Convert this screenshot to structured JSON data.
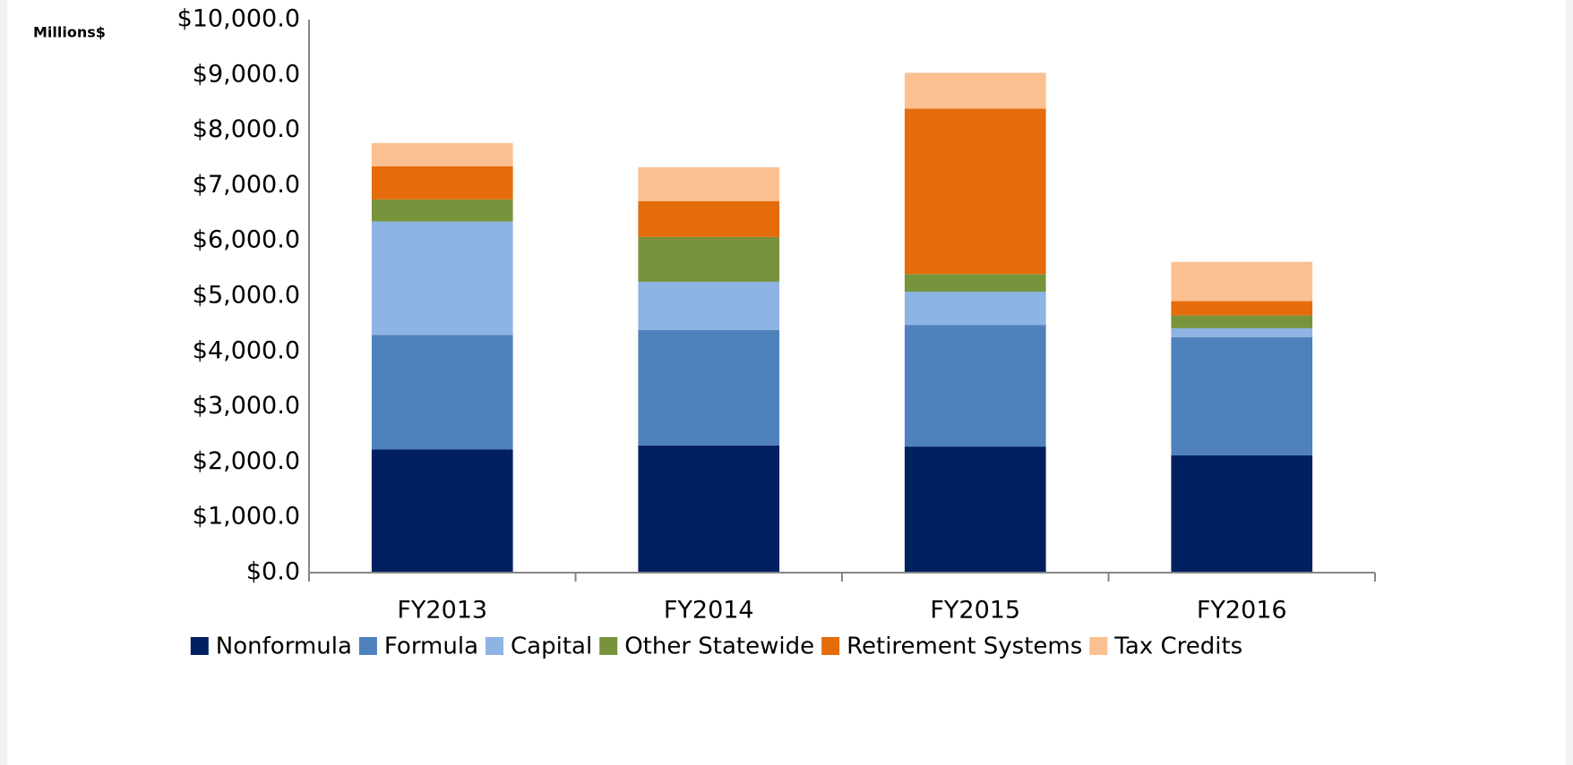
{
  "chart_data": {
    "type": "stacked_bar",
    "y_label": "Millions$",
    "categories": [
      "FY2013",
      "FY2014",
      "FY2015",
      "FY2016"
    ],
    "series": [
      {
        "name": "Nonformula",
        "color": "#002060",
        "values": [
          2230,
          2300,
          2280,
          2120
        ]
      },
      {
        "name": "Formula",
        "color": "#4f81bd",
        "values": [
          2070,
          2090,
          2200,
          2140
        ]
      },
      {
        "name": "Capital",
        "color": "#8db4e2",
        "values": [
          2050,
          870,
          600,
          160
        ]
      },
      {
        "name": "Other Statewide",
        "color": "#77933c",
        "values": [
          400,
          810,
          320,
          230
        ]
      },
      {
        "name": "Retirement Systems",
        "color": "#e46c0a",
        "values": [
          600,
          650,
          2990,
          260
        ]
      },
      {
        "name": "Tax Credits",
        "color": "#fac090",
        "values": [
          420,
          610,
          650,
          710
        ]
      }
    ],
    "ylim": [
      0,
      10000
    ],
    "yticks": [
      {
        "value": 0,
        "label": "$0.0"
      },
      {
        "value": 1000,
        "label": "$1,000.0"
      },
      {
        "value": 2000,
        "label": "$2,000.0"
      },
      {
        "value": 3000,
        "label": "$3,000.0"
      },
      {
        "value": 4000,
        "label": "$4,000.0"
      },
      {
        "value": 5000,
        "label": "$5,000.0"
      },
      {
        "value": 6000,
        "label": "$6,000.0"
      },
      {
        "value": 7000,
        "label": "$7,000.0"
      },
      {
        "value": 8000,
        "label": "$8,000.0"
      },
      {
        "value": 9000,
        "label": "$9,000.0"
      },
      {
        "value": 10000,
        "label": "$10,000.0"
      }
    ],
    "grid": false,
    "legend": "bottom"
  }
}
